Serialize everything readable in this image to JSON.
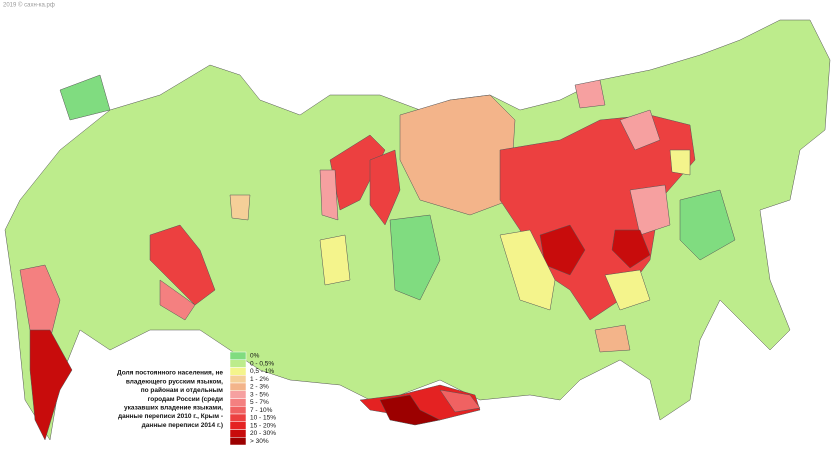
{
  "watermark": "2019 © сахн-ка.рф",
  "legend": {
    "title_lines": [
      "Доля постоянного населения, не",
      "владеющего русским языком,",
      "по районам и отдельным",
      "городам России (среди",
      "указавших владение языками,",
      "данные переписи 2010 г., Крым -",
      "данные переписи 2014 г.)"
    ],
    "items": [
      {
        "label": "0%",
        "color": "#80dc80"
      },
      {
        "label": "0 - 0,5%",
        "color": "#bdec8c"
      },
      {
        "label": "0,5 - 1%",
        "color": "#f4f48c"
      },
      {
        "label": "1 - 2%",
        "color": "#f5cf98"
      },
      {
        "label": "2 - 3%",
        "color": "#f3b48a"
      },
      {
        "label": "3 - 5%",
        "color": "#f6a0a0"
      },
      {
        "label": "5 - 7%",
        "color": "#f48080"
      },
      {
        "label": "7 - 10%",
        "color": "#f06262"
      },
      {
        "label": "10 - 15%",
        "color": "#ec4040"
      },
      {
        "label": "15 - 20%",
        "color": "#e42222"
      },
      {
        "label": "20 - 30%",
        "color": "#c80c0c"
      },
      {
        "label": "> 30%",
        "color": "#9c0000"
      }
    ]
  }
}
